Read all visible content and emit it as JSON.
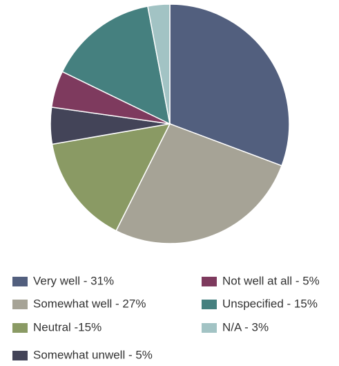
{
  "chart_data": {
    "type": "pie",
    "categories": [
      "Very well - 31%",
      "Somewhat well - 27%",
      "Neutral -15%",
      "Somewhat unwell - 5%",
      "Not well at all - 5%",
      "Unspecified - 15%",
      "N/A - 3%"
    ],
    "values": [
      31,
      27,
      15,
      5,
      5,
      15,
      3
    ],
    "colors": [
      "#525f7e",
      "#a6a396",
      "#8a9a64",
      "#434458",
      "#7e3a5e",
      "#45807f",
      "#a2c3c4"
    ]
  }
}
